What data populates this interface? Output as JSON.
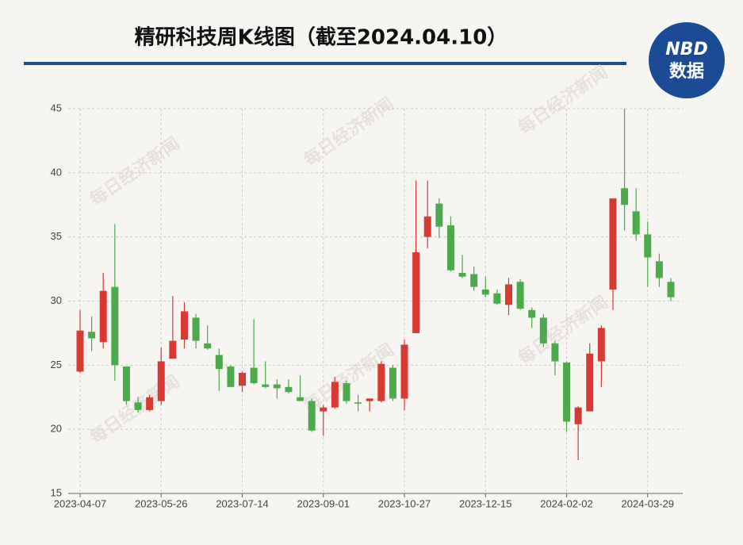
{
  "chart_data": {
    "type": "candlestick",
    "title": "精研科技周K线图（截至2024.04.10）",
    "logo": {
      "top": "NBD",
      "bottom": "数据"
    },
    "watermark": "每日经济新闻",
    "categories": [
      "2023-04-07",
      null,
      null,
      null,
      null,
      null,
      null,
      "2023-05-26",
      null,
      null,
      null,
      null,
      null,
      null,
      "2023-07-14",
      null,
      null,
      null,
      null,
      null,
      null,
      "2023-09-01",
      null,
      null,
      null,
      null,
      null,
      null,
      "2023-10-27",
      null,
      null,
      null,
      null,
      null,
      null,
      "2023-12-15",
      null,
      null,
      null,
      null,
      null,
      null,
      "2024-02-02",
      null,
      null,
      null,
      null,
      null,
      null,
      "2024-03-29",
      null,
      null
    ],
    "open": [
      24.5,
      27.6,
      26.8,
      31.1,
      24.9,
      22.1,
      21.5,
      22.2,
      25.5,
      27.0,
      28.7,
      26.7,
      25.8,
      24.9,
      23.4,
      24.8,
      23.5,
      23.5,
      23.3,
      22.5,
      22.2,
      21.4,
      21.7,
      23.6,
      22.1,
      22.2,
      22.2,
      24.8,
      22.4,
      27.5,
      35.0,
      37.6,
      35.9,
      32.2,
      32.1,
      30.9,
      30.6,
      29.7,
      31.5,
      29.3,
      28.7,
      26.7,
      25.2,
      20.4,
      21.4,
      25.3,
      30.9,
      38.8,
      37.0,
      35.2,
      33.1,
      31.5
    ],
    "high": [
      29.3,
      28.8,
      32.2,
      36.0,
      24.9,
      22.5,
      22.7,
      26.4,
      30.4,
      29.9,
      29.0,
      28.1,
      26.3,
      25.0,
      24.5,
      28.6,
      25.3,
      23.9,
      23.9,
      24.2,
      22.4,
      21.9,
      24.1,
      23.8,
      22.7,
      22.4,
      25.3,
      25.0,
      27.0,
      39.4,
      39.4,
      38.0,
      36.6,
      33.6,
      32.7,
      31.9,
      30.9,
      31.8,
      31.7,
      29.5,
      29.0,
      26.9,
      25.3,
      21.8,
      26.7,
      28.1,
      38.0,
      45.0,
      38.8,
      36.2,
      33.7,
      31.8
    ],
    "low": [
      24.4,
      26.1,
      26.3,
      23.8,
      21.9,
      21.3,
      21.4,
      21.9,
      25.5,
      26.3,
      26.3,
      26.2,
      23.0,
      23.3,
      22.9,
      23.5,
      23.2,
      22.4,
      22.8,
      22.2,
      19.8,
      19.5,
      21.6,
      22.0,
      21.4,
      21.4,
      22.1,
      22.2,
      21.5,
      27.5,
      34.1,
      34.9,
      32.3,
      31.8,
      30.8,
      30.3,
      29.7,
      28.9,
      29.3,
      27.9,
      26.4,
      24.2,
      19.8,
      17.6,
      21.4,
      23.3,
      29.3,
      35.5,
      34.7,
      31.1,
      31.1,
      30.0
    ],
    "close": [
      27.7,
      27.1,
      30.8,
      25.0,
      22.2,
      21.5,
      22.5,
      25.3,
      26.9,
      29.2,
      26.9,
      26.3,
      24.7,
      23.3,
      24.4,
      23.6,
      23.3,
      23.2,
      22.9,
      22.2,
      19.9,
      21.7,
      23.7,
      22.2,
      22.0,
      22.4,
      25.1,
      22.4,
      26.6,
      33.8,
      36.6,
      35.8,
      32.4,
      31.9,
      31.1,
      30.5,
      29.8,
      31.3,
      29.4,
      28.7,
      26.7,
      25.3,
      20.6,
      21.7,
      25.9,
      27.9,
      38.0,
      37.5,
      35.2,
      33.4,
      31.8,
      30.3
    ],
    "up_color": "#d63a33",
    "down_color": "#4caa4c",
    "ylim": [
      15,
      45
    ],
    "yticks": [
      15,
      20,
      25,
      30,
      35,
      40,
      45
    ],
    "grid": true
  }
}
